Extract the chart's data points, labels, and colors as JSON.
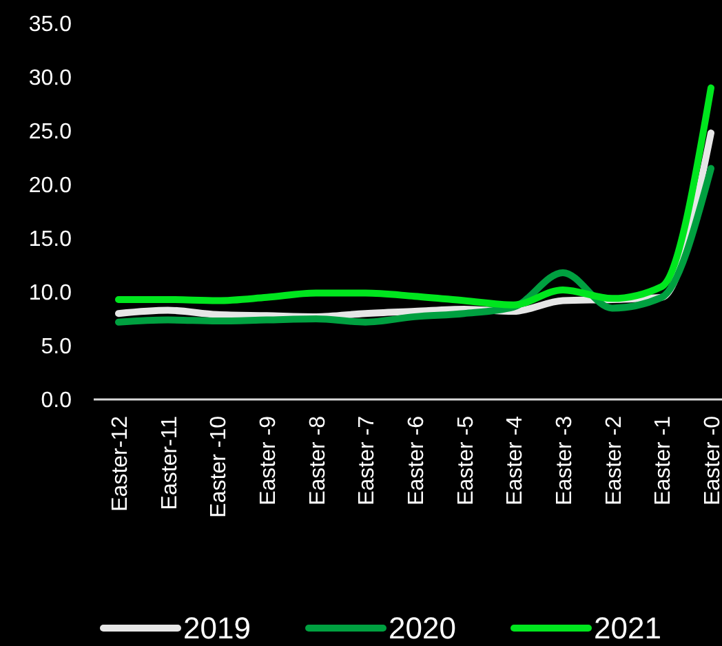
{
  "chart_data": {
    "type": "line",
    "categories": [
      "Easter-12",
      "Easter-11",
      "Easter -10",
      "Easter -9",
      "Easter -8",
      "Easter -7",
      "Easter -6",
      "Easter -5",
      "Easter -4",
      "Easter -3",
      "Easter -2",
      "Easter -1",
      "Easter -0"
    ],
    "series": [
      {
        "name": "2019",
        "color": "#e6e6e6",
        "values": [
          8.0,
          8.3,
          7.9,
          7.8,
          7.7,
          8.0,
          8.2,
          8.4,
          8.2,
          9.2,
          9.3,
          9.5,
          24.8
        ]
      },
      {
        "name": "2020",
        "color": "#00a040",
        "values": [
          7.2,
          7.4,
          7.3,
          7.4,
          7.5,
          7.2,
          7.7,
          8.0,
          8.6,
          11.8,
          8.5,
          9.5,
          21.5
        ]
      },
      {
        "name": "2021",
        "color": "#00e61e",
        "values": [
          9.3,
          9.3,
          9.2,
          9.5,
          9.9,
          9.9,
          9.6,
          9.2,
          8.8,
          10.2,
          9.4,
          10.5,
          29.0
        ]
      }
    ],
    "ylim": [
      0,
      35
    ],
    "yticks": [
      {
        "value": 0,
        "label": "0.0"
      },
      {
        "value": 5,
        "label": "5.0"
      },
      {
        "value": 10,
        "label": "10.0"
      },
      {
        "value": 15,
        "label": "15.0"
      },
      {
        "value": 20,
        "label": "20.0"
      },
      {
        "value": 25,
        "label": "25.0"
      },
      {
        "value": 30,
        "label": "30.0"
      },
      {
        "value": 35,
        "label": "35.0"
      }
    ],
    "grid": false,
    "legend": "bottom",
    "marker": "none",
    "line_style": "solid"
  }
}
